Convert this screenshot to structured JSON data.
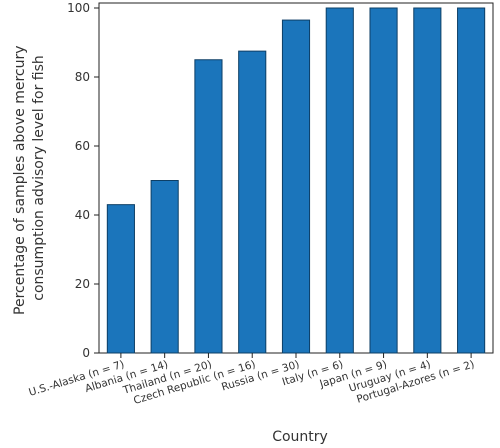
{
  "chart_data": {
    "type": "bar",
    "categories": [
      "U.S.-Alaska (n = 7)",
      "Albania (n = 14)",
      "Thailand (n = 20)",
      "Czech Republic (n = 16)",
      "Russia (n = 30)",
      "Italy (n = 6)",
      "Japan (n = 9)",
      "Uruguay (n = 4)",
      "Portugal-Azores (n = 2)"
    ],
    "values": [
      43,
      50,
      85,
      87.5,
      96.5,
      100,
      100,
      100,
      100
    ],
    "xlabel": "Country",
    "ylabel_lines": [
      "Percentage of samples above mercury",
      "consumption advisory level for fish"
    ],
    "ylim": [
      0,
      100
    ],
    "yticks": [
      0,
      20,
      40,
      60,
      80,
      100
    ],
    "grid": false,
    "bar_color": "#1b75bb",
    "bar_edge_color": "#0d3f66"
  }
}
